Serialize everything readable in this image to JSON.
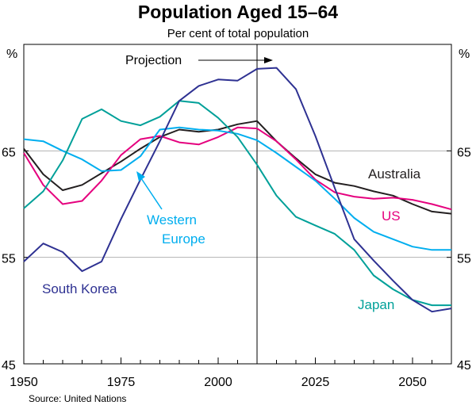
{
  "chart_data": {
    "type": "line",
    "title": "Population Aged 15–64",
    "subtitle": "Per cent of total population",
    "ylabel_left": "%",
    "ylabel_right": "%",
    "source": "Source: United Nations",
    "xlim": [
      1950,
      2060
    ],
    "ylim": [
      45,
      75
    ],
    "x_ticks": [
      1950,
      1975,
      2000,
      2025,
      2050
    ],
    "y_ticks": [
      45,
      55,
      65
    ],
    "gridlines_y": [
      55,
      65
    ],
    "projection_year": 2010,
    "projection_label": "Projection",
    "series": [
      {
        "name": "Australia",
        "color": "#231f20",
        "x": [
          1950,
          1955,
          1960,
          1965,
          1970,
          1975,
          1980,
          1985,
          1990,
          1995,
          2000,
          2005,
          2010,
          2015,
          2020,
          2025,
          2030,
          2035,
          2040,
          2045,
          2050,
          2055,
          2060
        ],
        "values": [
          65.2,
          62.8,
          61.3,
          61.8,
          62.9,
          64.0,
          65.2,
          66.3,
          67.0,
          66.8,
          67.0,
          67.5,
          67.8,
          65.9,
          64.3,
          62.8,
          62.0,
          61.7,
          61.2,
          60.8,
          60.0,
          59.3,
          59.1
        ]
      },
      {
        "name": "US",
        "color": "#e5007e",
        "x": [
          1950,
          1955,
          1960,
          1965,
          1970,
          1975,
          1980,
          1985,
          1990,
          1995,
          2000,
          2005,
          2010,
          2015,
          2020,
          2025,
          2030,
          2035,
          2040,
          2045,
          2050,
          2055,
          2060
        ],
        "values": [
          64.8,
          61.8,
          60.0,
          60.3,
          62.2,
          64.6,
          66.1,
          66.4,
          65.8,
          65.6,
          66.3,
          67.2,
          67.1,
          65.9,
          64.2,
          62.3,
          61.1,
          60.7,
          60.5,
          60.6,
          60.4,
          60.0,
          59.5
        ]
      },
      {
        "name": "Western Europe",
        "color": "#00aeef",
        "x": [
          1950,
          1955,
          1960,
          1965,
          1970,
          1975,
          1980,
          1985,
          1990,
          1995,
          2000,
          2005,
          2010,
          2015,
          2020,
          2025,
          2030,
          2035,
          2040,
          2045,
          2050,
          2055,
          2060
        ],
        "values": [
          66.1,
          65.9,
          65.0,
          64.2,
          63.1,
          63.2,
          64.5,
          67.0,
          67.2,
          67.0,
          66.9,
          66.6,
          66.0,
          64.8,
          63.5,
          62.2,
          60.5,
          58.7,
          57.4,
          56.7,
          56.0,
          55.7,
          55.7
        ]
      },
      {
        "name": "Japan",
        "color": "#00a099",
        "x": [
          1950,
          1955,
          1960,
          1965,
          1970,
          1975,
          1980,
          1985,
          1990,
          1995,
          2000,
          2005,
          2010,
          2015,
          2020,
          2025,
          2030,
          2035,
          2040,
          2045,
          2050,
          2055,
          2060
        ],
        "values": [
          59.6,
          61.2,
          64.1,
          68.0,
          68.9,
          67.8,
          67.4,
          68.2,
          69.7,
          69.5,
          68.1,
          66.3,
          63.7,
          60.8,
          58.8,
          58.0,
          57.2,
          55.7,
          53.3,
          52.0,
          51.0,
          50.5,
          50.5
        ]
      },
      {
        "name": "South Korea",
        "color": "#2e3192",
        "x": [
          1950,
          1955,
          1960,
          1965,
          1970,
          1975,
          1980,
          1985,
          1990,
          1995,
          2000,
          2005,
          2010,
          2015,
          2020,
          2025,
          2030,
          2035,
          2040,
          2045,
          2050,
          2055,
          2060
        ],
        "values": [
          54.6,
          56.3,
          55.5,
          53.7,
          54.6,
          58.6,
          62.3,
          65.9,
          69.7,
          71.1,
          71.7,
          71.6,
          72.7,
          72.8,
          70.8,
          66.4,
          61.5,
          56.7,
          54.7,
          52.8,
          51.0,
          49.9,
          50.2
        ]
      }
    ],
    "annotations": [
      {
        "text": "Australia"
      },
      {
        "text": "US"
      },
      {
        "text": "Western"
      },
      {
        "text": "Europe"
      },
      {
        "text": "South Korea"
      },
      {
        "text": "Japan"
      }
    ]
  }
}
